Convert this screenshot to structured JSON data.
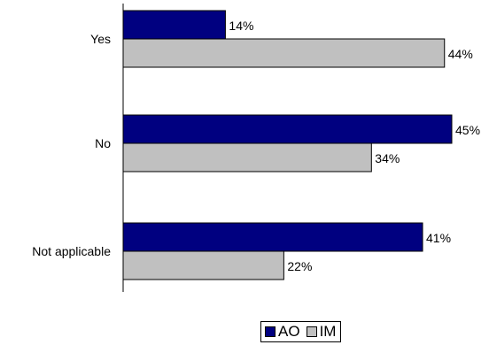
{
  "chart_data": {
    "type": "bar",
    "orientation": "horizontal",
    "categories": [
      "Yes",
      "No",
      "Not applicable"
    ],
    "series": [
      {
        "name": "AO",
        "values": [
          14,
          45,
          41
        ],
        "color": "#000080"
      },
      {
        "name": "IM",
        "values": [
          44,
          34,
          22
        ],
        "color": "#c0c0c0"
      }
    ],
    "value_suffix": "%",
    "xlim": [
      0,
      45
    ],
    "grid": false,
    "legend_position": "bottom"
  }
}
